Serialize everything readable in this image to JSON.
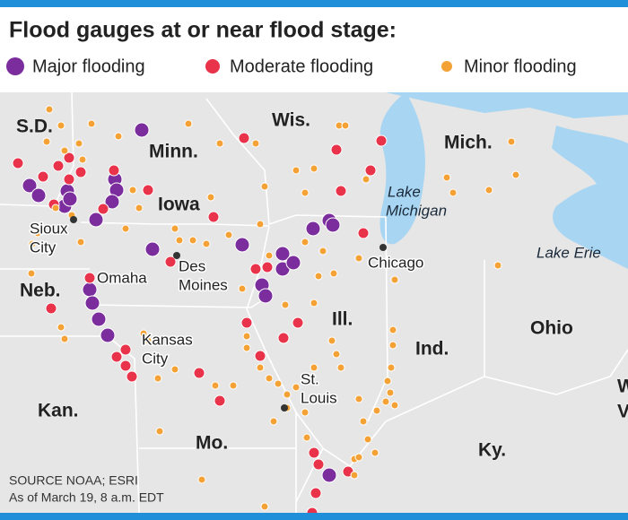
{
  "header": {
    "title": "Flood gauges at or near flood stage:"
  },
  "legend": [
    {
      "label": "Major flooding",
      "color": "#7b2d9e"
    },
    {
      "label": "Moderate flooding",
      "color": "#e8334a"
    },
    {
      "label": "Minor flooding",
      "color": "#f4a236"
    }
  ],
  "states": [
    {
      "label": "S.D."
    },
    {
      "label": "Minn."
    },
    {
      "label": "Wis."
    },
    {
      "label": "Mich."
    },
    {
      "label": "Iowa"
    },
    {
      "label": "Neb."
    },
    {
      "label": "Ill."
    },
    {
      "label": "Ohio"
    },
    {
      "label": "Ind."
    },
    {
      "label": "Kan."
    },
    {
      "label": "Mo."
    },
    {
      "label": "Ky."
    },
    {
      "label": "W"
    },
    {
      "label": "V"
    }
  ],
  "cities": [
    {
      "lines": [
        "Sioux",
        "City"
      ]
    },
    {
      "lines": [
        "Omaha"
      ]
    },
    {
      "lines": [
        "Des",
        "Moines"
      ]
    },
    {
      "lines": [
        "Chicago"
      ]
    },
    {
      "lines": [
        "Kansas",
        "City"
      ]
    },
    {
      "lines": [
        "St.",
        "Louis"
      ]
    }
  ],
  "lakes": [
    {
      "lines": [
        "Lake",
        "Michigan"
      ]
    },
    {
      "lines": [
        "Lake Erie"
      ]
    }
  ],
  "footer": {
    "source": "SOURCE NOAA; ESRI",
    "asof": "As of March 19, 8 a.m. EDT"
  }
}
